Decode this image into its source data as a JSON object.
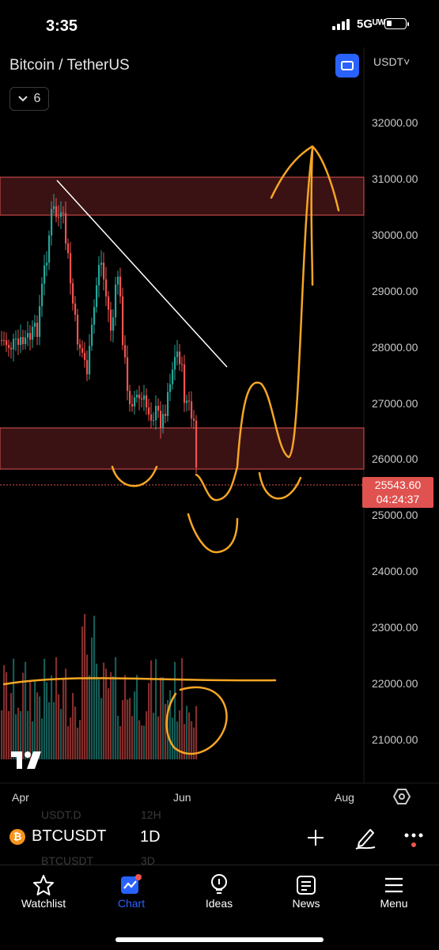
{
  "status_bar": {
    "time": "3:35",
    "network": "5Gᵁᵂ"
  },
  "header": {
    "symbol_title": "Bitcoin / TetherUS",
    "interval_badge": "6",
    "currency": "USDT˅"
  },
  "price_axis": [
    "32000.00",
    "31000.00",
    "30000.00",
    "29000.00",
    "28000.00",
    "27000.00",
    "26000.00",
    "25000.00",
    "24000.00",
    "23000.00",
    "22000.00",
    "21000.00"
  ],
  "last_price": {
    "price": "25543.60",
    "countdown": "04:24:37"
  },
  "time_axis": [
    "Apr",
    "Jun",
    "Aug"
  ],
  "ghost_rows": {
    "r1a": "USDT.D",
    "r1b": "12H",
    "r2a": "BTCUSDT",
    "r2b": "3D"
  },
  "bottom_bar": {
    "symbol": "BTCUSDT",
    "coin_glyph": "₿",
    "timeframe": "1D"
  },
  "tabs": [
    {
      "label": "Watchlist",
      "icon": "star-icon"
    },
    {
      "label": "Chart",
      "icon": "chart-icon"
    },
    {
      "label": "Ideas",
      "icon": "lightbulb-icon"
    },
    {
      "label": "News",
      "icon": "newspaper-icon"
    },
    {
      "label": "Menu",
      "icon": "hamburger-icon"
    }
  ],
  "colors": {
    "accent": "#2962ff",
    "bear": "#ef5350",
    "bull": "#26a69a",
    "annotation": "#f5a623",
    "zone": "#e0524f"
  },
  "chart_data": {
    "type": "candlestick",
    "symbol": "BTCUSDT",
    "interval": "1D",
    "ylim": [
      20300,
      32800
    ],
    "y_ticks": [
      21000,
      22000,
      23000,
      24000,
      25000,
      26000,
      27000,
      28000,
      29000,
      30000,
      31000,
      32000
    ],
    "x_ticks": [
      "Apr",
      "Jun",
      "Aug"
    ],
    "last_price": 25543.6,
    "resistance_zone": [
      30350,
      31050
    ],
    "support_zone": [
      25800,
      26550
    ]
  }
}
